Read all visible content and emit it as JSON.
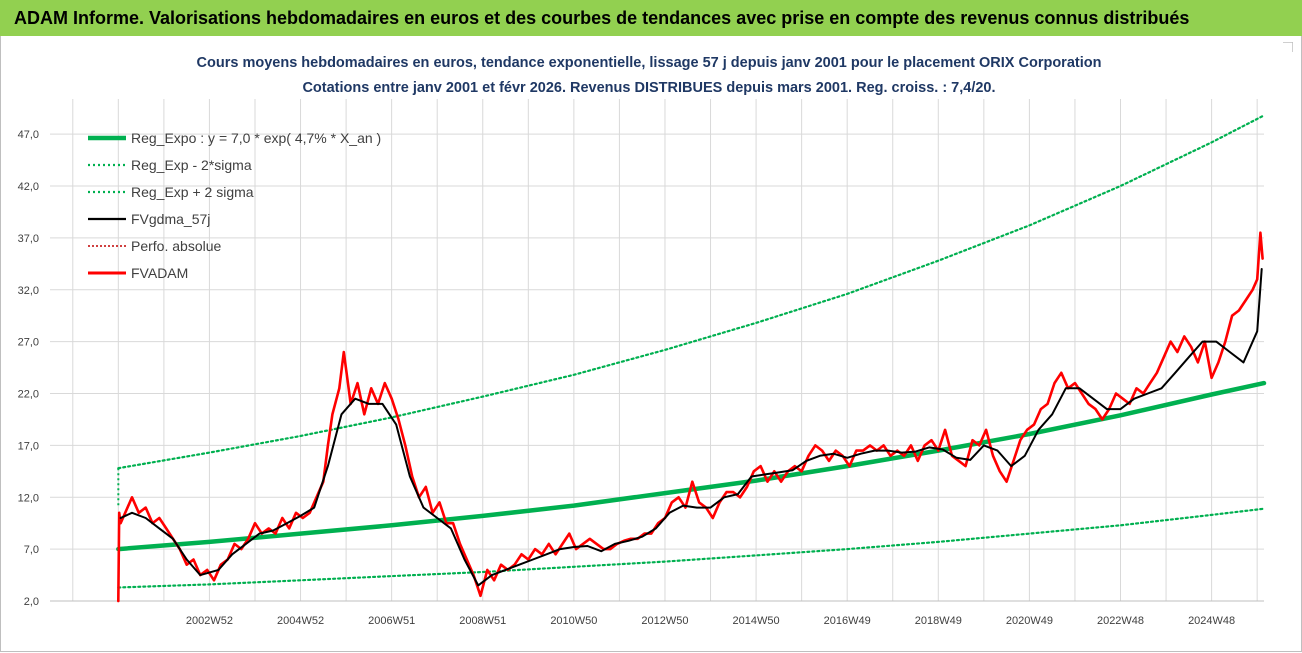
{
  "header": {
    "banner_title": "ADAM Informe. Valorisations hebdomadaires en euros et des courbes de tendances avec prise en compte des revenus connus distribués"
  },
  "colors": {
    "banner_bg": "#92d050",
    "trend": "#00b050",
    "sigma_band": "#00b050",
    "smoothed": "#000000",
    "absolute_perf": "#c00000",
    "fvadam": "#ff0000",
    "grid": "#d9d9d9",
    "title_text": "#1f3864"
  },
  "chart_data": {
    "type": "line",
    "title_line1": "Cours moyens hebdomadaires en euros, tendance exponentielle, lissage 57 j depuis janv 2001 pour le placement ORIX Corporation",
    "title_line2": "Cotations entre janv 2001 et févr 2026. Revenus DISTRIBUES depuis mars 2001. Reg. croiss. : 7,4/20.",
    "y_ticks": [
      "2,0",
      "7,0",
      "12,0",
      "17,0",
      "22,0",
      "27,0",
      "32,0",
      "37,0",
      "42,0",
      "47,0"
    ],
    "ylim": [
      2,
      50
    ],
    "xlim": [
      1999.5,
      2026.15
    ],
    "x_ticks": [
      "2002W52",
      "2004W52",
      "2006W51",
      "2008W51",
      "2010W50",
      "2012W50",
      "2014W50",
      "2016W49",
      "2018W49",
      "2020W49",
      "2022W48",
      "2024W48"
    ],
    "x_tick_years": [
      2003.0,
      2005.0,
      2007.0,
      2009.0,
      2011.0,
      2013.0,
      2015.0,
      2017.0,
      2019.0,
      2021.0,
      2023.0,
      2025.0
    ],
    "grid_years": [
      2000,
      2001,
      2002,
      2003,
      2004,
      2005,
      2006,
      2007,
      2008,
      2009,
      2010,
      2011,
      2012,
      2013,
      2014,
      2015,
      2016,
      2017,
      2018,
      2019,
      2020,
      2021,
      2022,
      2023,
      2024,
      2025,
      2026
    ],
    "grid": true,
    "legend_position": "top-left",
    "series": [
      {
        "name": "Reg_Expo : y = 7,0 * exp( 4,7% *  X_an )",
        "role": "trend",
        "x": [
          2001.0,
          2003.0,
          2005.0,
          2007.0,
          2009.0,
          2011.0,
          2013.0,
          2015.0,
          2017.0,
          2019.0,
          2021.0,
          2023.0,
          2025.0,
          2026.15
        ],
        "y": [
          7.0,
          7.7,
          8.5,
          9.3,
          10.2,
          11.2,
          12.4,
          13.6,
          15.0,
          16.5,
          18.1,
          19.9,
          21.9,
          23.0
        ]
      },
      {
        "name": "Reg_Exp - 2*sigma",
        "role": "lower",
        "x": [
          2001.0,
          2003.0,
          2005.0,
          2007.0,
          2009.0,
          2011.0,
          2013.0,
          2015.0,
          2017.0,
          2019.0,
          2021.0,
          2023.0,
          2025.0,
          2026.15
        ],
        "y": [
          3.3,
          3.6,
          4.0,
          4.4,
          4.8,
          5.3,
          5.8,
          6.4,
          7.0,
          7.7,
          8.5,
          9.3,
          10.3,
          10.9
        ]
      },
      {
        "name": "Reg_Exp + 2 sigma",
        "role": "upper",
        "x": [
          2001.0,
          2003.0,
          2005.0,
          2007.0,
          2009.0,
          2011.0,
          2013.0,
          2015.0,
          2017.0,
          2019.0,
          2021.0,
          2023.0,
          2025.0,
          2026.15
        ],
        "y": [
          14.8,
          16.3,
          17.9,
          19.7,
          21.7,
          23.8,
          26.2,
          28.8,
          31.6,
          34.8,
          38.2,
          42.0,
          46.2,
          48.8
        ]
      },
      {
        "name": "FVgdma_57j",
        "role": "smoothed",
        "x": [
          2001.05,
          2001.3,
          2001.6,
          2001.9,
          2002.2,
          2002.5,
          2002.8,
          2003.2,
          2003.5,
          2003.8,
          2004.1,
          2004.4,
          2004.7,
          2005.0,
          2005.3,
          2005.6,
          2005.9,
          2006.2,
          2006.5,
          2006.8,
          2007.1,
          2007.4,
          2007.7,
          2008.0,
          2008.3,
          2008.6,
          2008.9,
          2009.2,
          2009.5,
          2009.8,
          2010.1,
          2010.4,
          2010.7,
          2011.0,
          2011.3,
          2011.6,
          2011.9,
          2012.2,
          2012.5,
          2012.8,
          2013.1,
          2013.4,
          2013.7,
          2014.0,
          2014.3,
          2014.6,
          2014.9,
          2015.2,
          2015.5,
          2015.8,
          2016.1,
          2016.4,
          2016.7,
          2017.0,
          2017.3,
          2017.6,
          2017.9,
          2018.2,
          2018.5,
          2018.8,
          2019.1,
          2019.4,
          2019.7,
          2020.0,
          2020.3,
          2020.6,
          2020.9,
          2021.2,
          2021.5,
          2021.8,
          2022.1,
          2022.4,
          2022.7,
          2023.0,
          2023.3,
          2023.6,
          2023.9,
          2024.2,
          2024.5,
          2024.8,
          2025.1,
          2025.4,
          2025.7,
          2026.0,
          2026.1
        ],
        "y": [
          10.0,
          10.5,
          10.0,
          9.0,
          8.0,
          6.0,
          4.5,
          5.0,
          6.5,
          7.5,
          8.5,
          8.8,
          9.5,
          10.2,
          11.0,
          15.0,
          20.0,
          21.5,
          21.0,
          21.0,
          19.0,
          14.0,
          11.0,
          10.0,
          9.0,
          6.0,
          3.5,
          4.5,
          5.0,
          5.5,
          6.0,
          6.5,
          7.0,
          7.2,
          7.3,
          6.8,
          7.5,
          7.8,
          8.2,
          9.0,
          10.5,
          11.2,
          11.0,
          11.0,
          12.0,
          12.3,
          14.0,
          14.2,
          14.4,
          14.6,
          15.5,
          16.0,
          16.2,
          15.8,
          16.2,
          16.5,
          16.5,
          16.3,
          16.4,
          16.8,
          16.6,
          15.8,
          15.6,
          17.0,
          16.5,
          15.0,
          16.0,
          18.5,
          20.0,
          22.5,
          22.5,
          21.5,
          20.5,
          20.5,
          21.5,
          22.0,
          22.5,
          24.0,
          25.5,
          27.0,
          27.0,
          26.0,
          25.0,
          28.0,
          34.0
        ]
      },
      {
        "name": "Perfo. absolue",
        "role": "absolute",
        "x": [],
        "y": []
      },
      {
        "name": "FVADAM",
        "role": "fvadam",
        "x": [
          2001.0,
          2001.02,
          2001.05,
          2001.15,
          2001.3,
          2001.45,
          2001.6,
          2001.75,
          2001.9,
          2002.05,
          2002.2,
          2002.35,
          2002.5,
          2002.65,
          2002.8,
          2002.95,
          2003.1,
          2003.25,
          2003.4,
          2003.55,
          2003.7,
          2003.85,
          2004.0,
          2004.15,
          2004.3,
          2004.45,
          2004.6,
          2004.75,
          2004.9,
          2005.05,
          2005.2,
          2005.35,
          2005.5,
          2005.6,
          2005.7,
          2005.85,
          2005.95,
          2006.1,
          2006.25,
          2006.4,
          2006.55,
          2006.7,
          2006.85,
          2007.0,
          2007.15,
          2007.3,
          2007.45,
          2007.6,
          2007.75,
          2007.9,
          2008.05,
          2008.2,
          2008.35,
          2008.5,
          2008.65,
          2008.8,
          2008.95,
          2009.1,
          2009.25,
          2009.4,
          2009.55,
          2009.7,
          2009.85,
          2010.0,
          2010.15,
          2010.3,
          2010.45,
          2010.6,
          2010.75,
          2010.9,
          2011.05,
          2011.2,
          2011.35,
          2011.5,
          2011.65,
          2011.8,
          2011.95,
          2012.1,
          2012.25,
          2012.4,
          2012.55,
          2012.7,
          2012.85,
          2013.0,
          2013.15,
          2013.3,
          2013.45,
          2013.6,
          2013.75,
          2013.9,
          2014.05,
          2014.2,
          2014.35,
          2014.5,
          2014.65,
          2014.8,
          2014.95,
          2015.1,
          2015.25,
          2015.4,
          2015.55,
          2015.7,
          2015.85,
          2016.0,
          2016.15,
          2016.3,
          2016.45,
          2016.6,
          2016.75,
          2016.9,
          2017.05,
          2017.2,
          2017.35,
          2017.5,
          2017.65,
          2017.8,
          2017.95,
          2018.1,
          2018.25,
          2018.4,
          2018.55,
          2018.7,
          2018.85,
          2019.0,
          2019.15,
          2019.3,
          2019.45,
          2019.6,
          2019.75,
          2019.9,
          2020.05,
          2020.2,
          2020.35,
          2020.5,
          2020.65,
          2020.8,
          2020.95,
          2021.1,
          2021.25,
          2021.4,
          2021.55,
          2021.7,
          2021.85,
          2022.0,
          2022.15,
          2022.3,
          2022.45,
          2022.6,
          2022.75,
          2022.9,
          2023.05,
          2023.2,
          2023.35,
          2023.5,
          2023.65,
          2023.8,
          2023.95,
          2024.1,
          2024.25,
          2024.4,
          2024.55,
          2024.7,
          2024.85,
          2025.0,
          2025.15,
          2025.3,
          2025.45,
          2025.6,
          2025.75,
          2025.9,
          2026.0,
          2026.07,
          2026.12
        ],
        "y": [
          2.0,
          10.5,
          9.5,
          10.5,
          12.0,
          10.5,
          11.0,
          9.5,
          10.0,
          9.0,
          8.0,
          7.0,
          5.5,
          6.0,
          4.5,
          5.0,
          4.0,
          5.5,
          6.0,
          7.5,
          7.0,
          8.0,
          9.5,
          8.5,
          9.0,
          8.5,
          10.0,
          9.0,
          10.5,
          10.0,
          10.5,
          12.0,
          13.5,
          17.0,
          20.0,
          22.5,
          26.0,
          21.0,
          23.0,
          20.0,
          22.5,
          21.0,
          23.0,
          21.5,
          19.5,
          17.0,
          14.0,
          12.0,
          13.0,
          10.5,
          11.5,
          9.5,
          9.5,
          7.5,
          6.0,
          4.5,
          2.5,
          5.0,
          4.0,
          5.5,
          5.0,
          5.5,
          6.5,
          6.0,
          7.0,
          6.5,
          7.5,
          6.5,
          7.5,
          8.5,
          7.0,
          7.5,
          8.0,
          7.5,
          7.0,
          7.0,
          7.5,
          7.8,
          8.0,
          8.0,
          8.5,
          8.5,
          9.5,
          10.0,
          11.5,
          12.0,
          11.0,
          13.5,
          11.5,
          11.0,
          10.0,
          11.5,
          12.5,
          12.5,
          12.0,
          13.0,
          14.5,
          15.0,
          13.5,
          14.5,
          13.5,
          14.5,
          15.0,
          14.5,
          16.0,
          17.0,
          16.5,
          15.5,
          16.5,
          16.0,
          15.0,
          16.5,
          16.5,
          17.0,
          16.5,
          17.0,
          16.0,
          16.5,
          16.0,
          17.0,
          15.5,
          17.0,
          17.5,
          16.5,
          18.5,
          16.0,
          15.5,
          15.0,
          17.5,
          17.0,
          18.5,
          16.0,
          14.5,
          13.5,
          15.5,
          17.5,
          18.5,
          19.0,
          20.5,
          21.0,
          23.0,
          24.0,
          22.5,
          23.0,
          22.0,
          21.0,
          20.5,
          19.5,
          20.5,
          22.0,
          21.5,
          21.0,
          22.5,
          22.0,
          23.0,
          24.0,
          25.5,
          27.0,
          26.0,
          27.5,
          26.5,
          25.0,
          27.0,
          23.5,
          25.0,
          27.0,
          29.5,
          30.0,
          31.0,
          32.0,
          33.0,
          37.5,
          35.0
        ]
      }
    ]
  }
}
